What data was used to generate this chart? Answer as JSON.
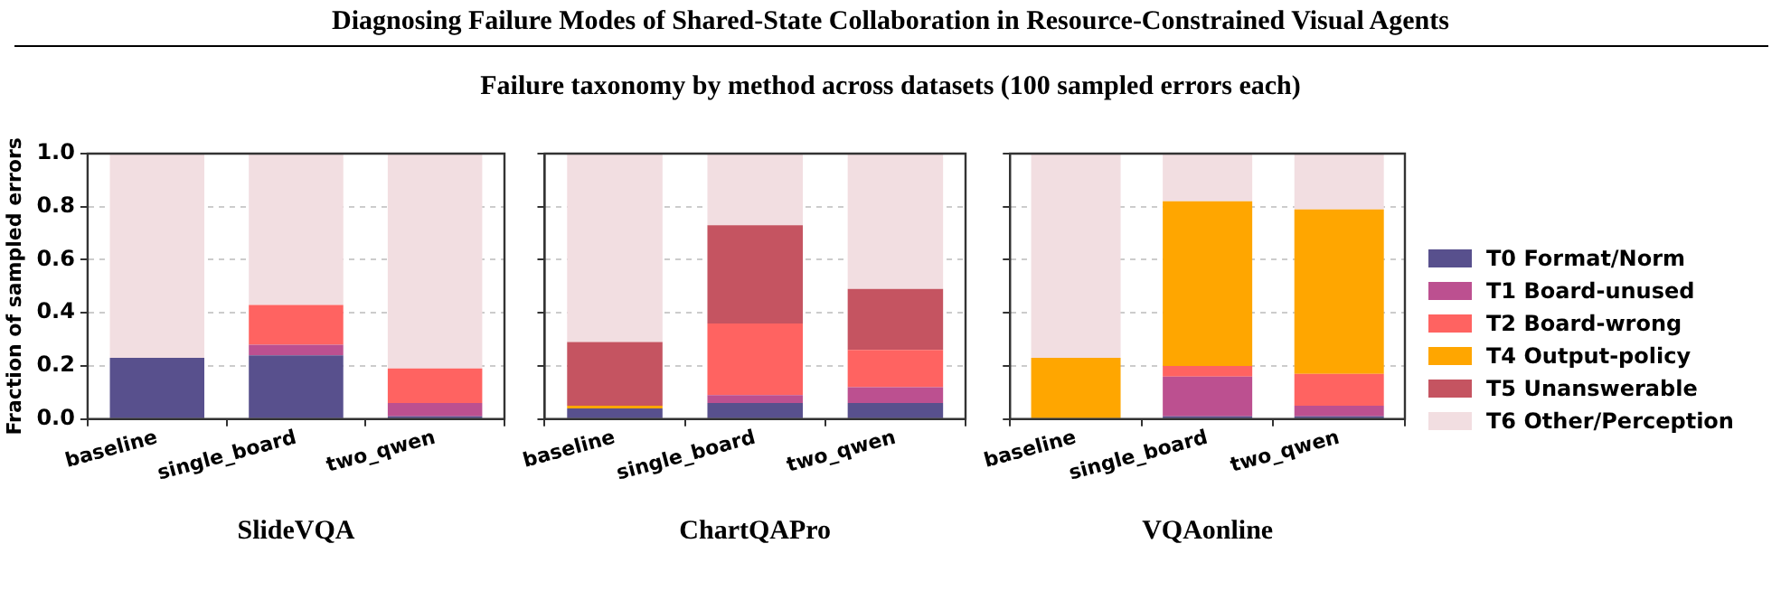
{
  "chart_data": [
    {
      "type": "bar",
      "xlabel": "SlideVQA",
      "ylabel": "Fraction of sampled errors",
      "categories": [
        "baseline",
        "single_board",
        "two_qwen"
      ],
      "stacked": true,
      "ylim": [
        0,
        1
      ],
      "yticks": [
        {
          "value": 0,
          "label": "0.0"
        },
        {
          "value": 0.2,
          "label": "0.2"
        },
        {
          "value": 0.4,
          "label": "0.4"
        },
        {
          "value": 0.6,
          "label": "0.6"
        },
        {
          "value": 0.8,
          "label": "0.8"
        },
        {
          "value": 1,
          "label": "1.0"
        }
      ],
      "grid": "y",
      "legend": false,
      "series": [
        {
          "color": "#58508d",
          "values": [
            0.23,
            0.24,
            0.01
          ]
        },
        {
          "color": "#bc5090",
          "values": [
            0,
            0.04,
            0.05
          ]
        },
        {
          "color": "#ff6361",
          "values": [
            0,
            0.15,
            0.13
          ]
        },
        {
          "color": "#ffa600",
          "values": [
            0,
            0,
            0
          ]
        },
        {
          "color": "#c55461",
          "values": [
            0,
            0,
            0
          ]
        },
        {
          "color": "#f2dee1",
          "values": [
            0.77,
            0.57,
            0.81
          ]
        }
      ]
    },
    {
      "type": "bar",
      "title": "Diagnosing Failure Modes of Shared-State Collaboration in Resource-Constrained Visual Agents",
      "subtitle": "Failure taxonomy by method across datasets (100 sampled errors each)",
      "xlabel": "ChartQAPro",
      "categories": [
        "baseline",
        "single_board",
        "two_qwen"
      ],
      "stacked": true,
      "ylim": [
        0,
        1
      ],
      "yticks": [
        {
          "value": 0,
          "label": null
        },
        {
          "value": 0.2,
          "label": null
        },
        {
          "value": 0.4,
          "label": null
        },
        {
          "value": 0.6,
          "label": null
        },
        {
          "value": 0.8,
          "label": null
        },
        {
          "value": 1,
          "label": null
        }
      ],
      "tick_labels": "x",
      "grid": "y",
      "legend": false,
      "series": [
        {
          "color": "#58508d",
          "values": [
            0.04,
            0.06,
            0.06
          ]
        },
        {
          "color": "#bc5090",
          "values": [
            0,
            0.03,
            0.06
          ]
        },
        {
          "color": "#ff6361",
          "values": [
            0,
            0.27,
            0.14
          ]
        },
        {
          "color": "#ffa600",
          "values": [
            0.01,
            0,
            0
          ]
        },
        {
          "color": "#c55461",
          "values": [
            0.24,
            0.37,
            0.23
          ]
        },
        {
          "color": "#f2dee1",
          "values": [
            0.71,
            0.27,
            0.51
          ]
        }
      ]
    },
    {
      "type": "bar",
      "xlabel": "VQAonline",
      "categories": [
        "baseline",
        "single_board",
        "two_qwen"
      ],
      "stacked": true,
      "ylim": [
        0,
        1
      ],
      "yticks": [
        {
          "value": 0,
          "label": null
        },
        {
          "value": 0.2,
          "label": null
        },
        {
          "value": 0.4,
          "label": null
        },
        {
          "value": 0.6,
          "label": null
        },
        {
          "value": 0.8,
          "label": null
        },
        {
          "value": 1,
          "label": null
        }
      ],
      "tick_labels": "x",
      "grid": "y",
      "legend": "right",
      "series": [
        {
          "name": "T0 Format/Norm",
          "color": "#58508d",
          "values": [
            0,
            0.01,
            0.01
          ]
        },
        {
          "name": "T1 Board-unused",
          "color": "#bc5090",
          "values": [
            0,
            0.15,
            0.04
          ]
        },
        {
          "name": "T2 Board-wrong",
          "color": "#ff6361",
          "values": [
            0,
            0.04,
            0.12
          ]
        },
        {
          "name": "T4 Output-policy",
          "color": "#ffa600",
          "values": [
            0.23,
            0.62,
            0.62
          ]
        },
        {
          "name": "T5 Unanswerable",
          "color": "#c55461",
          "values": [
            0,
            0,
            0
          ]
        },
        {
          "name": "T6 Other/Perception",
          "color": "#f2dee1",
          "values": [
            0.77,
            0.18,
            0.21
          ]
        }
      ]
    }
  ]
}
